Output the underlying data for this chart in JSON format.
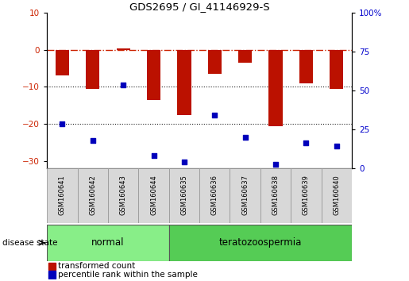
{
  "title": "GDS2695 / GI_41146929-S",
  "samples": [
    "GSM160641",
    "GSM160642",
    "GSM160643",
    "GSM160644",
    "GSM160635",
    "GSM160636",
    "GSM160637",
    "GSM160638",
    "GSM160639",
    "GSM160640"
  ],
  "red_bars": [
    -7.0,
    -10.5,
    0.3,
    -13.5,
    -17.5,
    -6.5,
    -3.5,
    -20.5,
    -9.0,
    -10.5
  ],
  "blue_dots": [
    -20.0,
    -24.5,
    -9.5,
    -28.5,
    -30.2,
    -17.5,
    -23.5,
    -30.8,
    -25.0,
    -26.0
  ],
  "ylim_left": [
    -32,
    10
  ],
  "ylim_right": [
    0,
    100
  ],
  "yticks_left": [
    10,
    0,
    -10,
    -20,
    -30
  ],
  "yticks_right": [
    100,
    75,
    50,
    25,
    0
  ],
  "hlines": [
    0.0,
    -10.0,
    -20.0
  ],
  "hline_styles": [
    "dashdot",
    "dotted",
    "dotted"
  ],
  "hline_colors": [
    "#cc2200",
    "#222222",
    "#222222"
  ],
  "bar_color": "#bb1100",
  "dot_color": "#0000bb",
  "normal_color": "#88ee88",
  "terato_color": "#55cc55",
  "label_normal": "normal",
  "label_terato": "teratozoospermia",
  "legend_red": "transformed count",
  "legend_blue": "percentile rank within the sample",
  "disease_state_label": "disease state",
  "bar_width": 0.45
}
